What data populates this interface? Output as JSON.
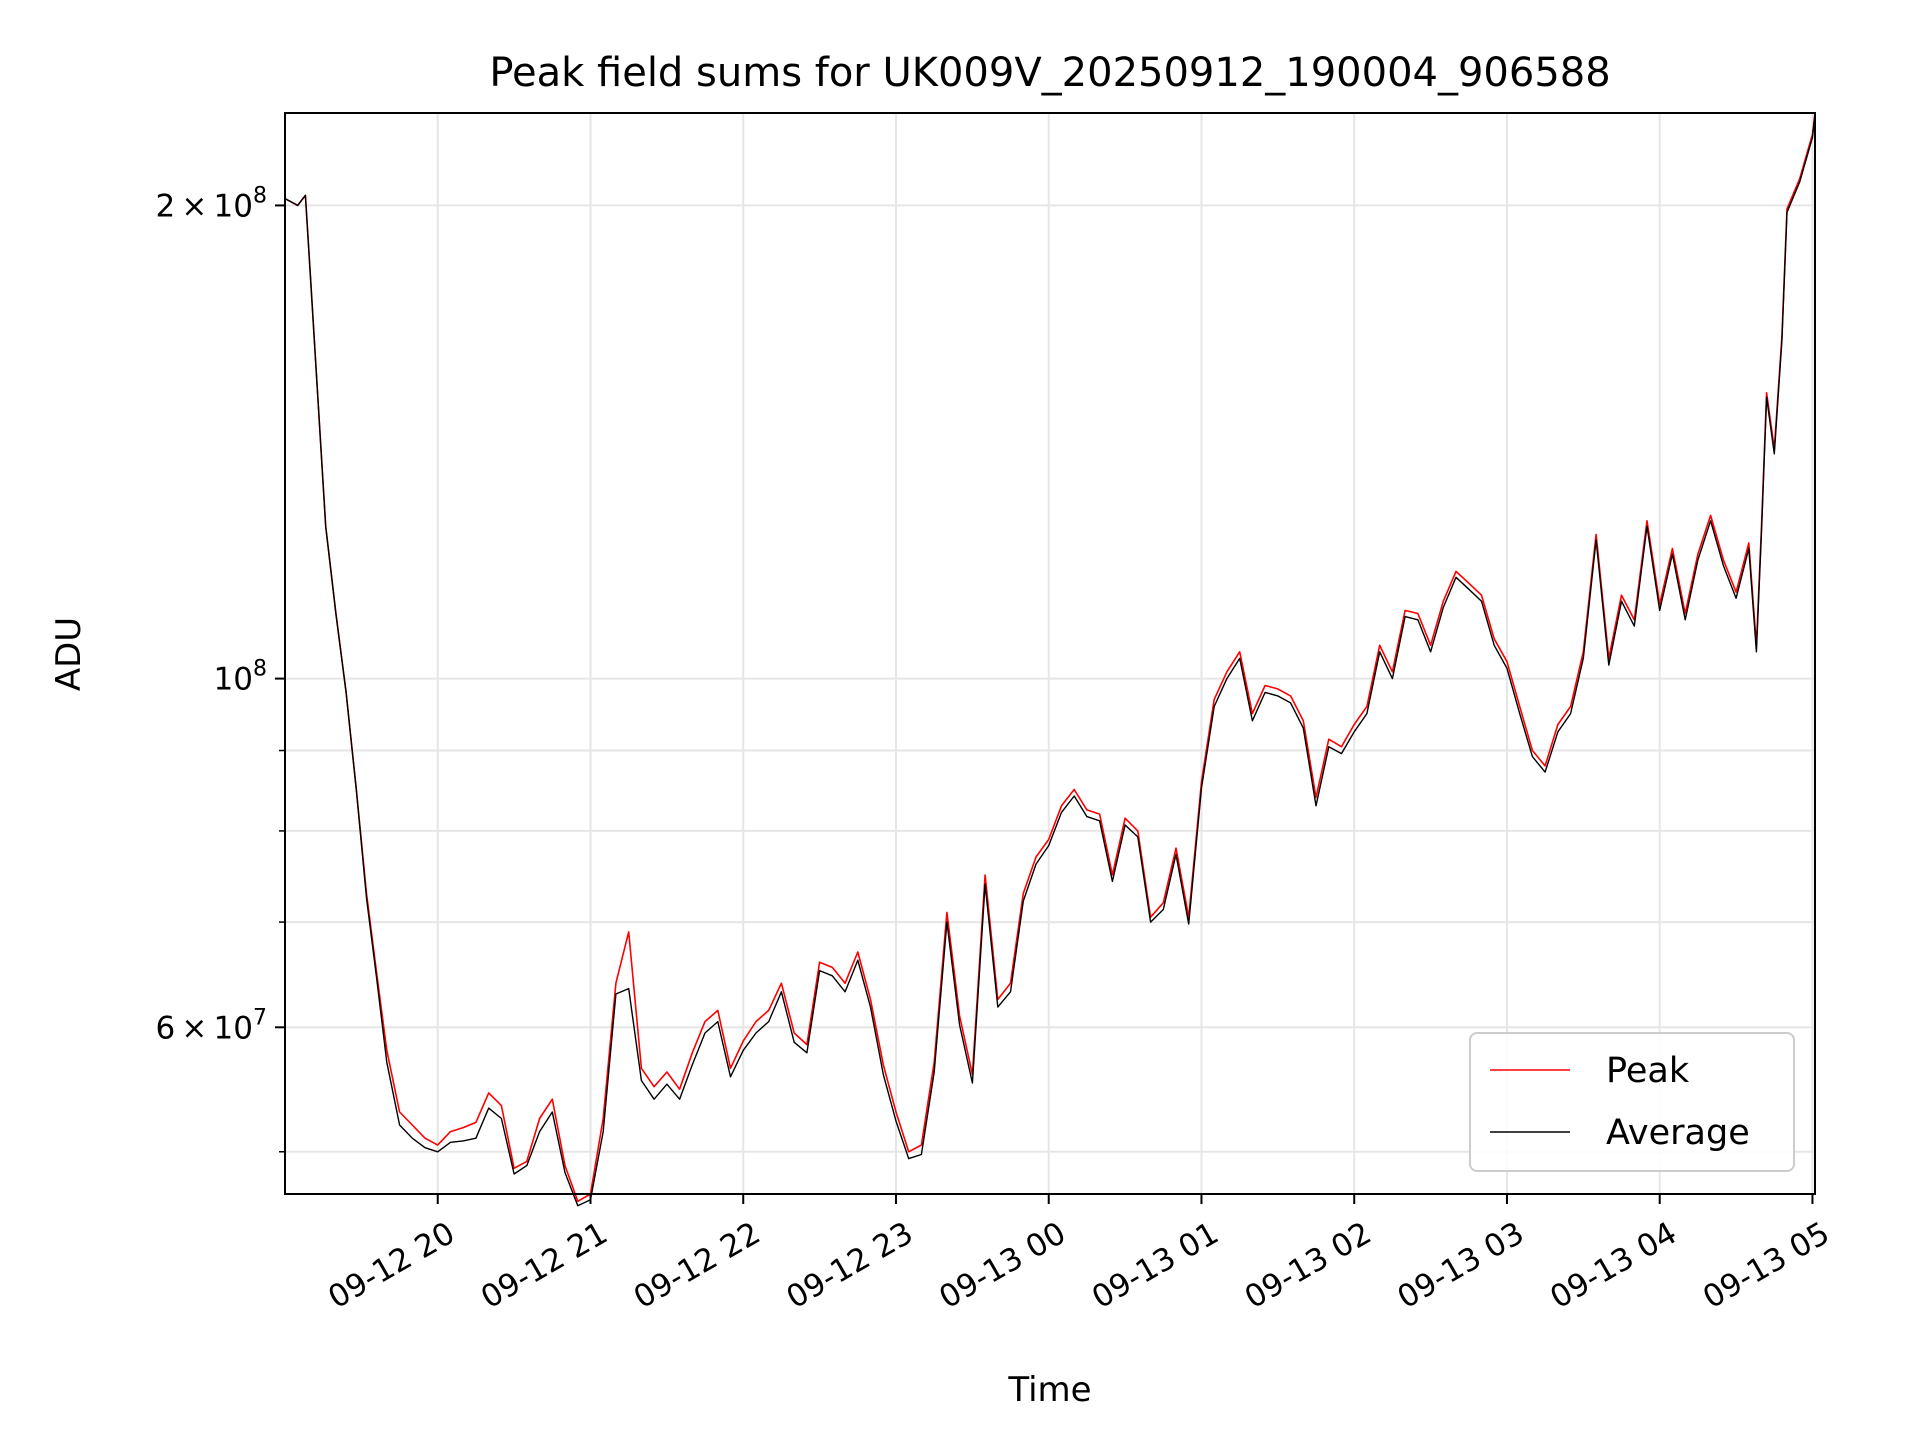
{
  "chart_data": {
    "type": "line",
    "title": "Peak field sums for UK009V_20250912_190004_906588",
    "xlabel": "Time",
    "ylabel": "ADU",
    "y_scale": "log",
    "grid": true,
    "legend_position": "lower right",
    "xlim": [
      "2025-09-12 19:00",
      "2025-09-13 05:01"
    ],
    "ylim": [
      47000000,
      229000000
    ],
    "x_ticks": [
      {
        "time": "2025-09-12 20:00",
        "label": "09-12 20"
      },
      {
        "time": "2025-09-12 21:00",
        "label": "09-12 21"
      },
      {
        "time": "2025-09-12 22:00",
        "label": "09-12 22"
      },
      {
        "time": "2025-09-12 23:00",
        "label": "09-12 23"
      },
      {
        "time": "2025-09-13 00:00",
        "label": "09-13 00"
      },
      {
        "time": "2025-09-13 01:00",
        "label": "09-13 01"
      },
      {
        "time": "2025-09-13 02:00",
        "label": "09-13 02"
      },
      {
        "time": "2025-09-13 03:00",
        "label": "09-13 03"
      },
      {
        "time": "2025-09-13 04:00",
        "label": "09-13 04"
      },
      {
        "time": "2025-09-13 05:00",
        "label": "09-13 05"
      }
    ],
    "y_major_ticks": [
      {
        "value": 60000000,
        "mantissa": "6",
        "exponent": "7"
      },
      {
        "value": 100000000,
        "mantissa": "",
        "exponent": "8"
      },
      {
        "value": 200000000,
        "mantissa": "2",
        "exponent": "8"
      }
    ],
    "y_minor_ticks": [
      50000000,
      70000000,
      80000000,
      90000000
    ],
    "x": [
      "2025-09-12 19:00",
      "2025-09-12 19:05",
      "2025-09-12 19:08",
      "2025-09-12 19:10",
      "2025-09-12 19:13",
      "2025-09-12 19:16",
      "2025-09-12 19:20",
      "2025-09-12 19:24",
      "2025-09-12 19:28",
      "2025-09-12 19:32",
      "2025-09-12 19:36",
      "2025-09-12 19:40",
      "2025-09-12 19:45",
      "2025-09-12 19:50",
      "2025-09-12 19:55",
      "2025-09-12 20:00",
      "2025-09-12 20:05",
      "2025-09-12 20:10",
      "2025-09-12 20:15",
      "2025-09-12 20:20",
      "2025-09-12 20:25",
      "2025-09-12 20:30",
      "2025-09-12 20:35",
      "2025-09-12 20:40",
      "2025-09-12 20:45",
      "2025-09-12 20:50",
      "2025-09-12 20:55",
      "2025-09-12 21:00",
      "2025-09-12 21:05",
      "2025-09-12 21:10",
      "2025-09-12 21:15",
      "2025-09-12 21:20",
      "2025-09-12 21:25",
      "2025-09-12 21:30",
      "2025-09-12 21:35",
      "2025-09-12 21:40",
      "2025-09-12 21:45",
      "2025-09-12 21:50",
      "2025-09-12 21:55",
      "2025-09-12 22:00",
      "2025-09-12 22:05",
      "2025-09-12 22:10",
      "2025-09-12 22:15",
      "2025-09-12 22:20",
      "2025-09-12 22:25",
      "2025-09-12 22:30",
      "2025-09-12 22:35",
      "2025-09-12 22:40",
      "2025-09-12 22:45",
      "2025-09-12 22:50",
      "2025-09-12 22:55",
      "2025-09-12 23:00",
      "2025-09-12 23:05",
      "2025-09-12 23:10",
      "2025-09-12 23:15",
      "2025-09-12 23:20",
      "2025-09-12 23:25",
      "2025-09-12 23:30",
      "2025-09-12 23:35",
      "2025-09-12 23:40",
      "2025-09-12 23:45",
      "2025-09-12 23:50",
      "2025-09-12 23:55",
      "2025-09-13 00:00",
      "2025-09-13 00:05",
      "2025-09-13 00:10",
      "2025-09-13 00:15",
      "2025-09-13 00:20",
      "2025-09-13 00:25",
      "2025-09-13 00:30",
      "2025-09-13 00:35",
      "2025-09-13 00:40",
      "2025-09-13 00:45",
      "2025-09-13 00:50",
      "2025-09-13 00:55",
      "2025-09-13 01:00",
      "2025-09-13 01:05",
      "2025-09-13 01:10",
      "2025-09-13 01:15",
      "2025-09-13 01:20",
      "2025-09-13 01:25",
      "2025-09-13 01:30",
      "2025-09-13 01:35",
      "2025-09-13 01:40",
      "2025-09-13 01:45",
      "2025-09-13 01:50",
      "2025-09-13 01:55",
      "2025-09-13 02:00",
      "2025-09-13 02:05",
      "2025-09-13 02:10",
      "2025-09-13 02:15",
      "2025-09-13 02:20",
      "2025-09-13 02:25",
      "2025-09-13 02:30",
      "2025-09-13 02:35",
      "2025-09-13 02:40",
      "2025-09-13 02:45",
      "2025-09-13 02:50",
      "2025-09-13 02:55",
      "2025-09-13 03:00",
      "2025-09-13 03:05",
      "2025-09-13 03:10",
      "2025-09-13 03:15",
      "2025-09-13 03:20",
      "2025-09-13 03:25",
      "2025-09-13 03:30",
      "2025-09-13 03:35",
      "2025-09-13 03:40",
      "2025-09-13 03:45",
      "2025-09-13 03:50",
      "2025-09-13 03:55",
      "2025-09-13 04:00",
      "2025-09-13 04:05",
      "2025-09-13 04:10",
      "2025-09-13 04:15",
      "2025-09-13 04:20",
      "2025-09-13 04:25",
      "2025-09-13 04:30",
      "2025-09-13 04:35",
      "2025-09-13 04:38",
      "2025-09-13 04:40",
      "2025-09-13 04:42",
      "2025-09-13 04:45",
      "2025-09-13 04:48",
      "2025-09-13 04:50",
      "2025-09-13 04:55",
      "2025-09-13 05:00",
      "2025-09-13 05:01"
    ],
    "series": [
      {
        "name": "Peak",
        "color": "#ff0000",
        "values": [
          202000000,
          200000000,
          203000000,
          180000000,
          150000000,
          125000000,
          110000000,
          98000000,
          85000000,
          73000000,
          65000000,
          58000000,
          53000000,
          52000000,
          51000000,
          50500000,
          51500000,
          51800000,
          52200000,
          54500000,
          53500000,
          48800000,
          49300000,
          52500000,
          54000000,
          49000000,
          46500000,
          47000000,
          52500000,
          64000000,
          69000000,
          56500000,
          55000000,
          56200000,
          54800000,
          57800000,
          60500000,
          61500000,
          56500000,
          58800000,
          60500000,
          61500000,
          64000000,
          59500000,
          58500000,
          66000000,
          65500000,
          64000000,
          67000000,
          62500000,
          56800000,
          53000000,
          50000000,
          50500000,
          57000000,
          71000000,
          61000000,
          56000000,
          75000000,
          62500000,
          64000000,
          73000000,
          77000000,
          79000000,
          83000000,
          85000000,
          82500000,
          82000000,
          75000000,
          81500000,
          80000000,
          70500000,
          72000000,
          78000000,
          70500000,
          86000000,
          97000000,
          101000000,
          104000000,
          95000000,
          99000000,
          98500000,
          97500000,
          94000000,
          84000000,
          91500000,
          90500000,
          93500000,
          96000000,
          105000000,
          101000000,
          110500000,
          110000000,
          105000000,
          112000000,
          117000000,
          115000000,
          113000000,
          106000000,
          102500000,
          96000000,
          90000000,
          88000000,
          93500000,
          96000000,
          104000000,
          123500000,
          103000000,
          113000000,
          109000000,
          126000000,
          111500000,
          121000000,
          110000000,
          120000000,
          127000000,
          119000000,
          113500000,
          122000000,
          105000000,
          125000000,
          152000000,
          140000000,
          165000000,
          199000000,
          208000000,
          222000000,
          229000000
        ]
      },
      {
        "name": "Average",
        "color": "#000000",
        "values": [
          202000000,
          200000000,
          203000000,
          180000000,
          150000000,
          125000000,
          110000000,
          98000000,
          85000000,
          72500000,
          64500000,
          57000000,
          52000000,
          51000000,
          50300000,
          50000000,
          50700000,
          50800000,
          51000000,
          53300000,
          52500000,
          48400000,
          49000000,
          51500000,
          53000000,
          48500000,
          46200000,
          46600000,
          51500000,
          63000000,
          63500000,
          55500000,
          54000000,
          55200000,
          54000000,
          56800000,
          59500000,
          60500000,
          55800000,
          58000000,
          59500000,
          60500000,
          63200000,
          58700000,
          57800000,
          65200000,
          64700000,
          63200000,
          66200000,
          61800000,
          56000000,
          52300000,
          49500000,
          49800000,
          56200000,
          70000000,
          60200000,
          55300000,
          74000000,
          61800000,
          63200000,
          72200000,
          76200000,
          78300000,
          82200000,
          84200000,
          81700000,
          81200000,
          74300000,
          80700000,
          79300000,
          70000000,
          71300000,
          77300000,
          69800000,
          85200000,
          96000000,
          100000000,
          103000000,
          94000000,
          98000000,
          97500000,
          96500000,
          93000000,
          83000000,
          90500000,
          89600000,
          92500000,
          95000000,
          104000000,
          100000000,
          109500000,
          109000000,
          104000000,
          111000000,
          116000000,
          114000000,
          112000000,
          105000000,
          101500000,
          95000000,
          89200000,
          87200000,
          92500000,
          95000000,
          103000000,
          122500000,
          102000000,
          112000000,
          108000000,
          125000000,
          110500000,
          120000000,
          109000000,
          119000000,
          126000000,
          118000000,
          112500000,
          121000000,
          104000000,
          124000000,
          151000000,
          139000000,
          164000000,
          198000000,
          207000000,
          221000000,
          228500000
        ]
      }
    ]
  }
}
